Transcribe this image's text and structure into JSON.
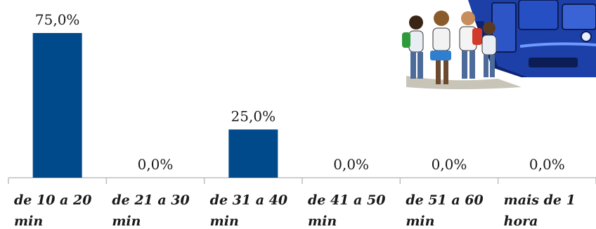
{
  "chart_data": {
    "type": "bar",
    "categories": [
      [
        "de 10 a 20",
        "min"
      ],
      [
        "de 21 a 30",
        "min"
      ],
      [
        "de 31 a 40",
        "min"
      ],
      [
        "de 41 a 50",
        "min"
      ],
      [
        "de 51 a 60",
        "min"
      ],
      [
        "mais de 1",
        "hora"
      ]
    ],
    "values": [
      75.0,
      0.0,
      25.0,
      0.0,
      0.0,
      0.0
    ],
    "data_labels": [
      "75,0%",
      "0,0%",
      "25,0%",
      "0,0%",
      "0,0%",
      "0,0%"
    ],
    "ylim": [
      0,
      75
    ],
    "grid": false,
    "legend": "none",
    "bar_color": "#004a8c",
    "title": "",
    "xlabel": "",
    "ylabel": ""
  },
  "illustration": {
    "icon": "students-boarding-school-bus-illustration",
    "bus_color": "#1d3fa8"
  }
}
